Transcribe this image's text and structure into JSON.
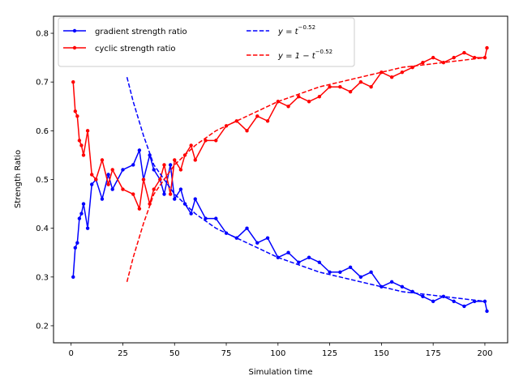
{
  "chart_data": {
    "type": "line",
    "xlabel": "Simulation time",
    "ylabel": "Strength Ratio",
    "xlim": [
      -8.5,
      211
    ],
    "ylim": [
      0.165,
      0.835
    ],
    "xticks": [
      0,
      25,
      50,
      75,
      100,
      125,
      150,
      175,
      200
    ],
    "yticks": [
      0.2,
      0.3,
      0.4,
      0.5,
      0.6,
      0.7,
      0.8
    ],
    "x_tick_labels": [
      "0",
      "25",
      "50",
      "75",
      "100",
      "125",
      "150",
      "175",
      "200"
    ],
    "y_tick_labels": [
      "0.2",
      "0.3",
      "0.4",
      "0.5",
      "0.6",
      "0.7",
      "0.8"
    ],
    "grid": false,
    "legend_position": "top-left",
    "legend": [
      {
        "label": "gradient strength ratio",
        "color": "#0000ff",
        "style": "solid-marker"
      },
      {
        "label": "cyclic strength ratio",
        "color": "#ff0000",
        "style": "solid-marker"
      },
      {
        "label_main": "y = t",
        "label_sup": "−0.52",
        "color": "#0000ff",
        "style": "dashed"
      },
      {
        "label_main": "y = 1 − t",
        "label_sup": "−0.52",
        "color": "#ff0000",
        "style": "dashed"
      }
    ],
    "series": [
      {
        "name": "gradient strength ratio",
        "color": "#0000ff",
        "style": "solid-marker",
        "x": [
          1,
          2,
          3,
          4,
          5,
          6,
          8,
          10,
          12,
          15,
          18,
          20,
          25,
          30,
          33,
          35,
          38,
          40,
          43,
          45,
          48,
          50,
          53,
          55,
          58,
          60,
          65,
          70,
          75,
          80,
          85,
          90,
          95,
          100,
          105,
          110,
          115,
          120,
          125,
          130,
          135,
          140,
          145,
          150,
          155,
          160,
          165,
          170,
          175,
          180,
          185,
          190,
          195,
          200,
          201
        ],
        "y": [
          0.3,
          0.36,
          0.37,
          0.42,
          0.43,
          0.45,
          0.4,
          0.49,
          0.5,
          0.46,
          0.51,
          0.48,
          0.52,
          0.53,
          0.56,
          0.5,
          0.55,
          0.52,
          0.5,
          0.47,
          0.53,
          0.46,
          0.48,
          0.45,
          0.43,
          0.46,
          0.42,
          0.42,
          0.39,
          0.38,
          0.4,
          0.37,
          0.38,
          0.34,
          0.35,
          0.33,
          0.34,
          0.33,
          0.31,
          0.31,
          0.32,
          0.3,
          0.31,
          0.28,
          0.29,
          0.28,
          0.27,
          0.26,
          0.25,
          0.26,
          0.25,
          0.24,
          0.25,
          0.25,
          0.23
        ]
      },
      {
        "name": "cyclic strength ratio",
        "color": "#ff0000",
        "style": "solid-marker",
        "x": [
          1,
          2,
          3,
          4,
          5,
          6,
          8,
          10,
          12,
          15,
          18,
          20,
          25,
          30,
          33,
          35,
          38,
          40,
          43,
          45,
          48,
          50,
          53,
          55,
          58,
          60,
          65,
          70,
          75,
          80,
          85,
          90,
          95,
          100,
          105,
          110,
          115,
          120,
          125,
          130,
          135,
          140,
          145,
          150,
          155,
          160,
          165,
          170,
          175,
          180,
          185,
          190,
          195,
          200,
          201
        ],
        "y": [
          0.7,
          0.64,
          0.63,
          0.58,
          0.57,
          0.55,
          0.6,
          0.51,
          0.5,
          0.54,
          0.49,
          0.52,
          0.48,
          0.47,
          0.44,
          0.5,
          0.45,
          0.48,
          0.5,
          0.53,
          0.47,
          0.54,
          0.52,
          0.55,
          0.57,
          0.54,
          0.58,
          0.58,
          0.61,
          0.62,
          0.6,
          0.63,
          0.62,
          0.66,
          0.65,
          0.67,
          0.66,
          0.67,
          0.69,
          0.69,
          0.68,
          0.7,
          0.69,
          0.72,
          0.71,
          0.72,
          0.73,
          0.74,
          0.75,
          0.74,
          0.75,
          0.76,
          0.75,
          0.75,
          0.77
        ]
      },
      {
        "name": "y = t^-0.52",
        "color": "#0000ff",
        "style": "dashed",
        "x": [
          27,
          30,
          35,
          40,
          45,
          50,
          60,
          70,
          80,
          90,
          100,
          120,
          140,
          160,
          180,
          200
        ],
        "y": [
          0.71,
          0.66,
          0.59,
          0.53,
          0.5,
          0.47,
          0.43,
          0.4,
          0.38,
          0.36,
          0.34,
          0.31,
          0.29,
          0.27,
          0.26,
          0.25
        ]
      },
      {
        "name": "y = 1 - t^-0.52",
        "color": "#ff0000",
        "style": "dashed",
        "x": [
          27,
          30,
          35,
          40,
          45,
          50,
          60,
          70,
          80,
          90,
          100,
          120,
          140,
          160,
          180,
          200
        ],
        "y": [
          0.29,
          0.34,
          0.41,
          0.47,
          0.5,
          0.53,
          0.57,
          0.6,
          0.62,
          0.64,
          0.66,
          0.69,
          0.71,
          0.73,
          0.74,
          0.75
        ]
      }
    ]
  }
}
